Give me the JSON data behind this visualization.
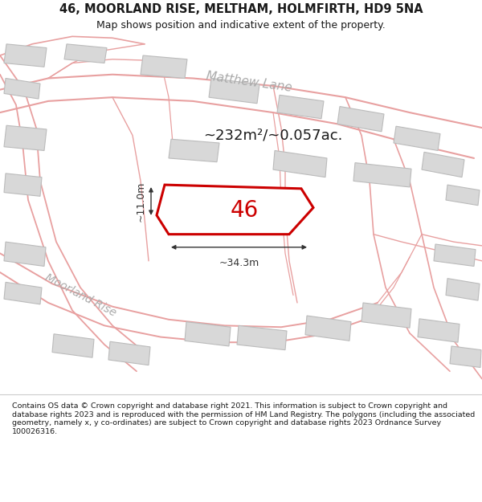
{
  "title_line1": "46, MOORLAND RISE, MELTHAM, HOLMFIRTH, HD9 5NA",
  "title_line2": "Map shows position and indicative extent of the property.",
  "footer_text": "Contains OS data © Crown copyright and database right 2021. This information is subject to Crown copyright and database rights 2023 and is reproduced with the permission of HM Land Registry. The polygons (including the associated geometry, namely x, y co-ordinates) are subject to Crown copyright and database rights 2023 Ordnance Survey 100026316.",
  "area_text": "~232m²/~0.057ac.",
  "plot_number": "46",
  "dim_width": "~34.3m",
  "dim_height": "~11.0m",
  "map_bg": "#f7f7f7",
  "plot_outline_color": "#cc0000",
  "road_line_color": "#e8a0a0",
  "building_fill": "#d8d8d8",
  "building_stroke": "#bbbbbb",
  "road_label_color": "#aaaaaa",
  "dim_color": "#333333",
  "text_color": "#1a1a1a",
  "footer_bg": "#ffffff",
  "title_bg": "#ffffff",
  "map_border_color": "#cccccc"
}
